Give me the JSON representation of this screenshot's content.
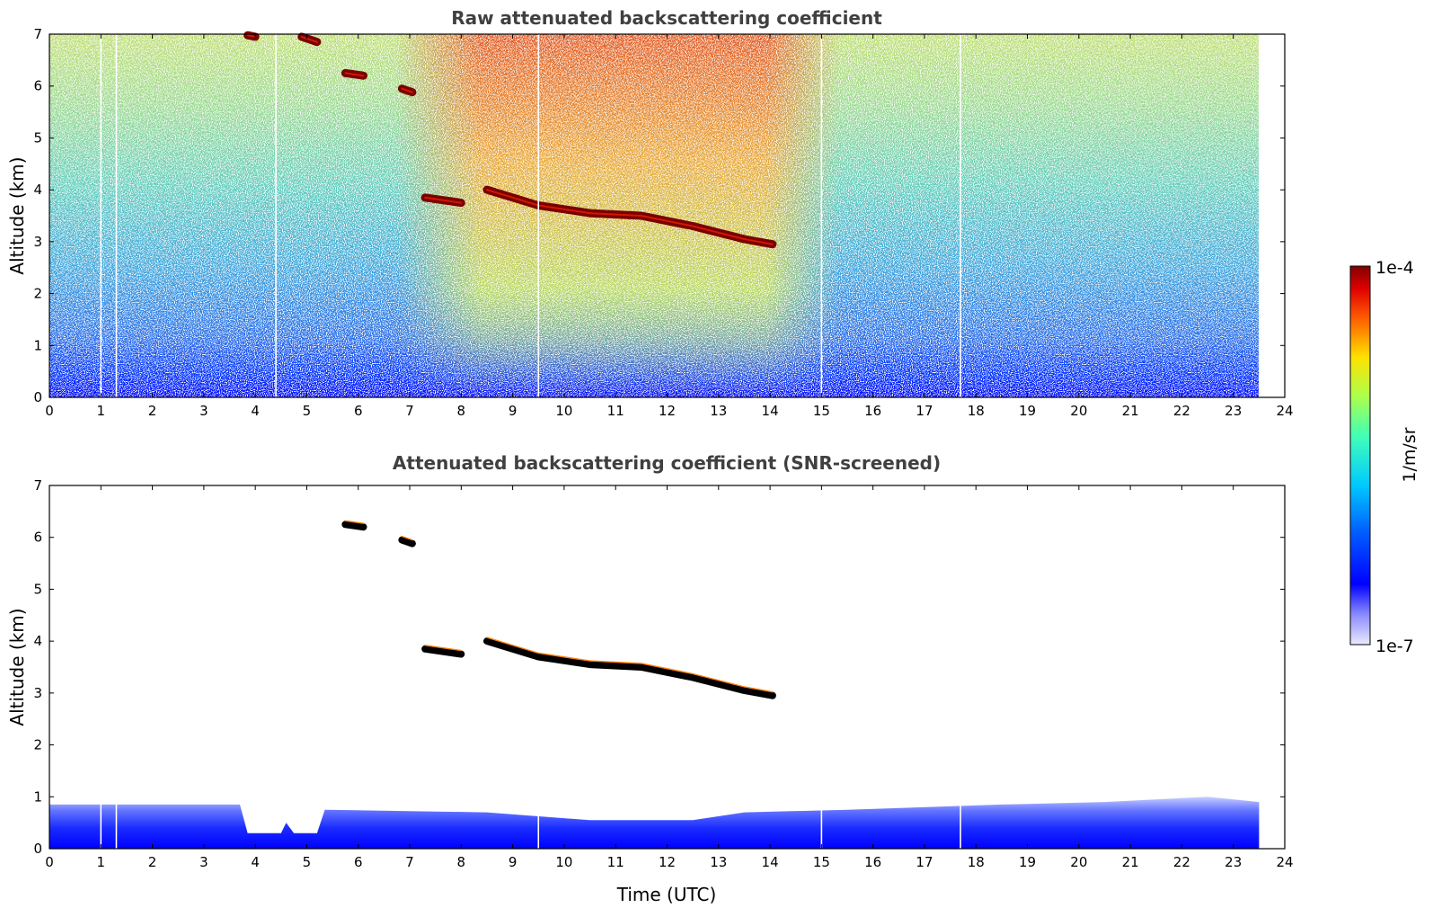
{
  "chart_data": [
    {
      "type": "heatmap",
      "title": "Raw attenuated backscattering coefficient",
      "xlabel": "",
      "ylabel": "Altitude (km)",
      "xlim": [
        0,
        24
      ],
      "ylim": [
        0,
        7
      ],
      "x_ticks": [
        "0",
        "1",
        "2",
        "3",
        "4",
        "5",
        "6",
        "7",
        "8",
        "9",
        "10",
        "11",
        "12",
        "13",
        "14",
        "15",
        "16",
        "17",
        "18",
        "19",
        "20",
        "21",
        "22",
        "23",
        "24"
      ],
      "y_ticks": [
        "0",
        "1",
        "2",
        "3",
        "4",
        "5",
        "6",
        "7"
      ],
      "data_extent_hours": [
        0,
        23.5
      ],
      "missing_profiles_hours": [
        1.0,
        1.3,
        4.4,
        9.5,
        15.0,
        17.7
      ],
      "cloud_layers": [
        {
          "points": [
            [
              8.5,
              4.0
            ],
            [
              9.5,
              3.7
            ],
            [
              10.5,
              3.55
            ],
            [
              11.5,
              3.5
            ],
            [
              12.5,
              3.3
            ],
            [
              13.5,
              3.05
            ],
            [
              14.05,
              2.95
            ]
          ],
          "value": "1e-4"
        },
        {
          "points": [
            [
              7.3,
              3.85
            ],
            [
              8.0,
              3.75
            ]
          ],
          "value": "1e-4"
        },
        {
          "points": [
            [
              3.85,
              6.98
            ],
            [
              4.0,
              6.95
            ]
          ],
          "value": "1e-4"
        },
        {
          "points": [
            [
              4.9,
              6.95
            ],
            [
              5.2,
              6.85
            ]
          ],
          "value": "1e-4"
        },
        {
          "points": [
            [
              5.75,
              6.25
            ],
            [
              6.1,
              6.2
            ]
          ],
          "value": "1e-4"
        },
        {
          "points": [
            [
              6.85,
              5.95
            ],
            [
              7.05,
              5.88
            ]
          ],
          "value": "1e-4"
        }
      ]
    },
    {
      "type": "heatmap",
      "title": "Attenuated backscattering coefficient (SNR-screened)",
      "xlabel": "Time (UTC)",
      "ylabel": "Altitude (km)",
      "xlim": [
        0,
        24
      ],
      "ylim": [
        0,
        7
      ],
      "x_ticks": [
        "0",
        "1",
        "2",
        "3",
        "4",
        "5",
        "6",
        "7",
        "8",
        "9",
        "10",
        "11",
        "12",
        "13",
        "14",
        "15",
        "16",
        "17",
        "18",
        "19",
        "20",
        "21",
        "22",
        "23",
        "24"
      ],
      "y_ticks": [
        "0",
        "1",
        "2",
        "3",
        "4",
        "5",
        "6",
        "7"
      ],
      "data_extent_hours": [
        0,
        23.5
      ],
      "boundary_layer_top_km": [
        [
          0,
          0.85
        ],
        [
          3.7,
          0.85
        ],
        [
          3.85,
          0.3
        ],
        [
          4.5,
          0.3
        ],
        [
          4.6,
          0.5
        ],
        [
          4.75,
          0.3
        ],
        [
          5.2,
          0.3
        ],
        [
          5.35,
          0.75
        ],
        [
          8.5,
          0.7
        ],
        [
          10.5,
          0.55
        ],
        [
          12.5,
          0.55
        ],
        [
          13.5,
          0.7
        ],
        [
          15.5,
          0.75
        ],
        [
          18.5,
          0.85
        ],
        [
          20.5,
          0.9
        ],
        [
          22.5,
          1.0
        ],
        [
          23.5,
          0.9
        ]
      ],
      "gap_hours": [
        3.8,
        5.3
      ]
    }
  ],
  "colorbar": {
    "label": "1/m/sr",
    "max_label": "1e-4",
    "min_label": "1e-7",
    "scale": "log",
    "colormap": "jet"
  },
  "colors": {
    "cloud_dark": "#7a0000",
    "cloud_screened": "#000000",
    "title": "#404040"
  }
}
